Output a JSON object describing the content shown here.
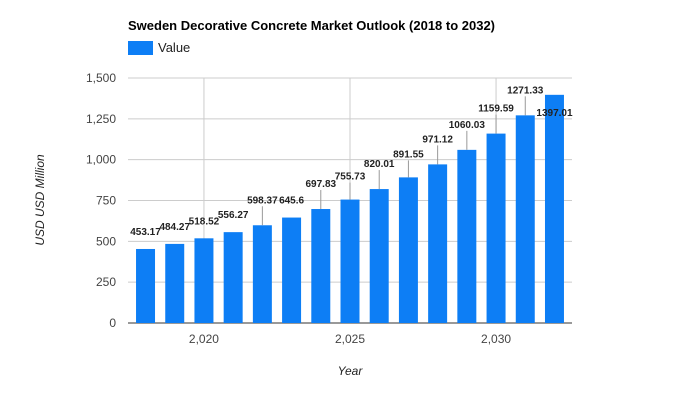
{
  "chart_data": {
    "type": "bar",
    "title": "Sweden Decorative Concrete Market Outlook (2018 to 2032)",
    "xlabel": "Year",
    "ylabel": "USD USD Million",
    "legend": {
      "position": "top-left",
      "entries": [
        "Value"
      ]
    },
    "series": [
      {
        "name": "Value",
        "color": "#0d7ef5",
        "x": [
          2018,
          2019,
          2020,
          2021,
          2022,
          2023,
          2024,
          2025,
          2026,
          2027,
          2028,
          2029,
          2030,
          2031,
          2032
        ],
        "values": [
          453.17,
          484.27,
          518.52,
          556.27,
          598.37,
          645.6,
          697.83,
          755.73,
          820.01,
          891.55,
          971.12,
          1060.03,
          1159.59,
          1271.33,
          1397.01
        ],
        "data_labels": [
          "453.17",
          "484.27",
          "518.52",
          "556.27",
          "598.37",
          "645.6",
          "697.83",
          "755.73",
          "820.01",
          "891.55",
          "971.12",
          "1060.03",
          "1159.59",
          "1271.33",
          "1397.01"
        ]
      }
    ],
    "ylim": [
      0,
      1500
    ],
    "yticks": [
      0,
      250,
      500,
      750,
      1000,
      1250,
      1500
    ],
    "ytick_labels": [
      "0",
      "250",
      "500",
      "750",
      "1,000",
      "1,250",
      "1,500"
    ],
    "xlim": [
      2017.4,
      2032.6
    ],
    "xticks": [
      2020,
      2025,
      2030
    ],
    "xtick_labels": [
      "2,020",
      "2,025",
      "2,030"
    ],
    "grid": true
  }
}
